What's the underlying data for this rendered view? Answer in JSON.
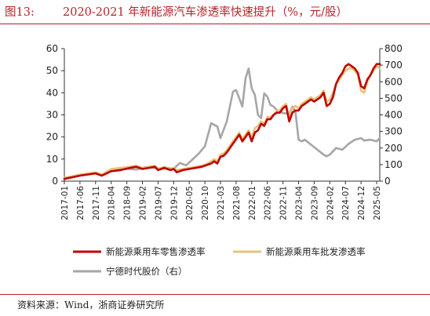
{
  "figure": {
    "number_label": "图13:",
    "title": "2020-2021 年新能源汽车渗透率快速提升（%，元/股）",
    "source": "资料来源：Wind，浙商证券研究所"
  },
  "chart_data": {
    "type": "line",
    "title": "2020-2021 年新能源汽车渗透率快速提升（%，元/股）",
    "y_left": {
      "min": 0,
      "max": 60,
      "ticks": [
        "0",
        "10",
        "20",
        "30",
        "40",
        "50",
        "60"
      ]
    },
    "y_right": {
      "min": 0,
      "max": 800,
      "ticks": [
        "0",
        "100",
        "200",
        "300",
        "400",
        "500",
        "600",
        "700",
        "800"
      ]
    },
    "x_range": [
      "2017-01",
      "2025-06"
    ],
    "x_ticks": [
      "2017-01",
      "2017-06",
      "2017-11",
      "2018-04",
      "2018-09",
      "2019-02",
      "2019-07",
      "2019-12",
      "2020-05",
      "2020-10",
      "2021-03",
      "2021-08",
      "2022-01",
      "2022-06",
      "2022-11",
      "2023-04",
      "2023-09",
      "2024-02",
      "2024-07",
      "2024-12",
      "2025-05"
    ],
    "grid": false,
    "legend_position": "bottom",
    "series": [
      {
        "name": "新能源乘用车零售渗透率",
        "axis": "left",
        "color": "#c00000",
        "x": [
          "2017-01",
          "2017-06",
          "2017-11",
          "2018-01",
          "2018-04",
          "2018-07",
          "2018-10",
          "2018-12",
          "2019-02",
          "2019-04",
          "2019-06",
          "2019-07",
          "2019-09",
          "2019-11",
          "2019-12",
          "2020-01",
          "2020-03",
          "2020-05",
          "2020-07",
          "2020-09",
          "2020-11",
          "2020-12",
          "2021-01",
          "2021-02",
          "2021-03",
          "2021-04",
          "2021-05",
          "2021-06",
          "2021-07",
          "2021-08",
          "2021-09",
          "2021-10",
          "2021-11",
          "2021-12",
          "2022-01",
          "2022-02",
          "2022-03",
          "2022-04",
          "2022-05",
          "2022-06",
          "2022-07",
          "2022-08",
          "2022-09",
          "2022-10",
          "2022-11",
          "2022-12",
          "2023-01",
          "2023-02",
          "2023-03",
          "2023-04",
          "2023-05",
          "2023-06",
          "2023-07",
          "2023-08",
          "2023-09",
          "2023-10",
          "2023-11",
          "2023-12",
          "2024-01",
          "2024-02",
          "2024-03",
          "2024-04",
          "2024-05",
          "2024-06",
          "2024-07",
          "2024-08",
          "2024-09",
          "2024-10",
          "2024-11",
          "2024-12",
          "2025-01",
          "2025-02",
          "2025-03",
          "2025-04",
          "2025-05",
          "2025-06"
        ],
        "values": [
          1,
          2.5,
          3.5,
          2.5,
          4.5,
          5,
          6,
          6.5,
          5.5,
          6,
          6.5,
          5,
          6,
          5,
          5.5,
          4,
          5,
          5.5,
          6,
          6.5,
          7.5,
          8,
          9,
          8,
          11,
          11.5,
          13,
          15,
          17,
          19,
          21,
          18,
          20,
          22,
          18,
          22,
          23,
          26,
          25,
          28,
          28,
          30,
          31,
          31,
          33,
          34,
          27,
          31,
          32,
          32,
          34,
          35,
          36,
          37,
          36,
          37,
          38,
          40,
          34,
          35,
          38,
          44,
          47,
          49,
          52,
          53,
          52,
          51,
          49,
          43,
          42,
          46,
          48,
          51,
          53,
          53
        ]
      },
      {
        "name": "新能源乘用车批发渗透率",
        "axis": "left",
        "color": "#e8c27a",
        "x": [
          "2017-01",
          "2017-06",
          "2017-11",
          "2018-01",
          "2018-04",
          "2018-07",
          "2018-10",
          "2018-12",
          "2019-02",
          "2019-04",
          "2019-06",
          "2019-07",
          "2019-09",
          "2019-11",
          "2019-12",
          "2020-01",
          "2020-03",
          "2020-05",
          "2020-07",
          "2020-09",
          "2020-11",
          "2020-12",
          "2021-01",
          "2021-02",
          "2021-03",
          "2021-04",
          "2021-05",
          "2021-06",
          "2021-07",
          "2021-08",
          "2021-09",
          "2021-10",
          "2021-11",
          "2021-12",
          "2022-01",
          "2022-02",
          "2022-03",
          "2022-04",
          "2022-05",
          "2022-06",
          "2022-07",
          "2022-08",
          "2022-09",
          "2022-10",
          "2022-11",
          "2022-12",
          "2023-01",
          "2023-02",
          "2023-03",
          "2023-04",
          "2023-05",
          "2023-06",
          "2023-07",
          "2023-08",
          "2023-09",
          "2023-10",
          "2023-11",
          "2023-12",
          "2024-01",
          "2024-02",
          "2024-03",
          "2024-04",
          "2024-05",
          "2024-06",
          "2024-07",
          "2024-08",
          "2024-09",
          "2024-10",
          "2024-11",
          "2024-12",
          "2025-01",
          "2025-02",
          "2025-03",
          "2025-04",
          "2025-05",
          "2025-06"
        ],
        "values": [
          1.5,
          3,
          4,
          3,
          5.5,
          6,
          6.5,
          7,
          6,
          6.5,
          7,
          5.5,
          6.5,
          5.5,
          6,
          5,
          5.5,
          6,
          6.5,
          7,
          8,
          9,
          10,
          9,
          12,
          12.5,
          14,
          16,
          18,
          20,
          22,
          19,
          21,
          23,
          20,
          24,
          25,
          27,
          26,
          29,
          29,
          30,
          32,
          32,
          34,
          35,
          29,
          33,
          34,
          33,
          35,
          36,
          37,
          38,
          37,
          38,
          39,
          41,
          36,
          37,
          40,
          44,
          46,
          48,
          50,
          51,
          51,
          50,
          48,
          41,
          40,
          45,
          48,
          50,
          52,
          51
        ]
      },
      {
        "name": "宁德时代股价（右）",
        "axis": "right",
        "color": "#a6a6a6",
        "x": [
          "2018-06",
          "2018-09",
          "2018-12",
          "2019-03",
          "2019-06",
          "2019-08",
          "2019-10",
          "2019-12",
          "2020-02",
          "2020-04",
          "2020-06",
          "2020-08",
          "2020-10",
          "2020-12",
          "2021-02",
          "2021-03",
          "2021-05",
          "2021-07",
          "2021-08",
          "2021-10",
          "2021-11",
          "2021-12",
          "2022-01",
          "2022-02",
          "2022-03",
          "2022-04",
          "2022-05",
          "2022-06",
          "2022-07",
          "2022-08",
          "2022-09",
          "2022-10",
          "2022-11",
          "2022-12",
          "2023-01",
          "2023-02",
          "2023-03",
          "2023-04",
          "2023-05",
          "2023-06",
          "2023-08",
          "2023-10",
          "2023-12",
          "2024-01",
          "2024-02",
          "2024-04",
          "2024-06",
          "2024-08",
          "2024-10",
          "2024-12",
          "2025-01",
          "2025-03",
          "2025-05",
          "2025-06"
        ],
        "values": [
          70,
          75,
          70,
          85,
          80,
          75,
          80,
          75,
          110,
          95,
          130,
          165,
          210,
          350,
          330,
          260,
          360,
          540,
          550,
          450,
          620,
          680,
          560,
          520,
          400,
          380,
          530,
          510,
          460,
          450,
          430,
          420,
          410,
          410,
          400,
          450,
          420,
          250,
          240,
          250,
          220,
          190,
          160,
          150,
          160,
          200,
          190,
          225,
          250,
          260,
          245,
          250,
          240,
          260
        ]
      }
    ]
  }
}
